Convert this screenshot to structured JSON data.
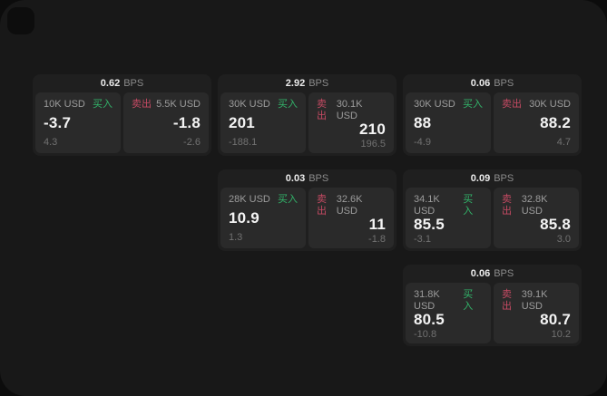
{
  "labels": {
    "bps": "BPS",
    "buy": "买入",
    "sell": "卖出"
  },
  "colors": {
    "buy": "#32b46a",
    "sell": "#c54a63",
    "page_bg": "#181818",
    "card_bg": "#1f1f1f",
    "panel_bg": "#2a2a2a"
  },
  "cards": [
    {
      "bps": "0.62",
      "buy": {
        "amount": "10K USD",
        "price": "-3.7",
        "delta": "4.3"
      },
      "sell": {
        "amount": "5.5K USD",
        "price": "-1.8",
        "delta": "-2.6"
      }
    },
    {
      "bps": "2.92",
      "buy": {
        "amount": "30K USD",
        "price": "201",
        "delta": "-188.1"
      },
      "sell": {
        "amount": "30.1K USD",
        "price": "210",
        "delta": "196.5"
      }
    },
    {
      "bps": "0.06",
      "buy": {
        "amount": "30K USD",
        "price": "88",
        "delta": "-4.9"
      },
      "sell": {
        "amount": "30K USD",
        "price": "88.2",
        "delta": "4.7"
      }
    },
    {
      "bps": "0.03",
      "buy": {
        "amount": "28K USD",
        "price": "10.9",
        "delta": "1.3"
      },
      "sell": {
        "amount": "32.6K USD",
        "price": "11",
        "delta": "-1.8"
      }
    },
    {
      "bps": "0.09",
      "buy": {
        "amount": "34.1K USD",
        "price": "85.5",
        "delta": "-3.1"
      },
      "sell": {
        "amount": "32.8K USD",
        "price": "85.8",
        "delta": "3.0"
      }
    },
    {
      "bps": "0.06",
      "buy": {
        "amount": "31.8K USD",
        "price": "80.5",
        "delta": "-10.8"
      },
      "sell": {
        "amount": "39.1K USD",
        "price": "80.7",
        "delta": "10.2"
      }
    }
  ]
}
